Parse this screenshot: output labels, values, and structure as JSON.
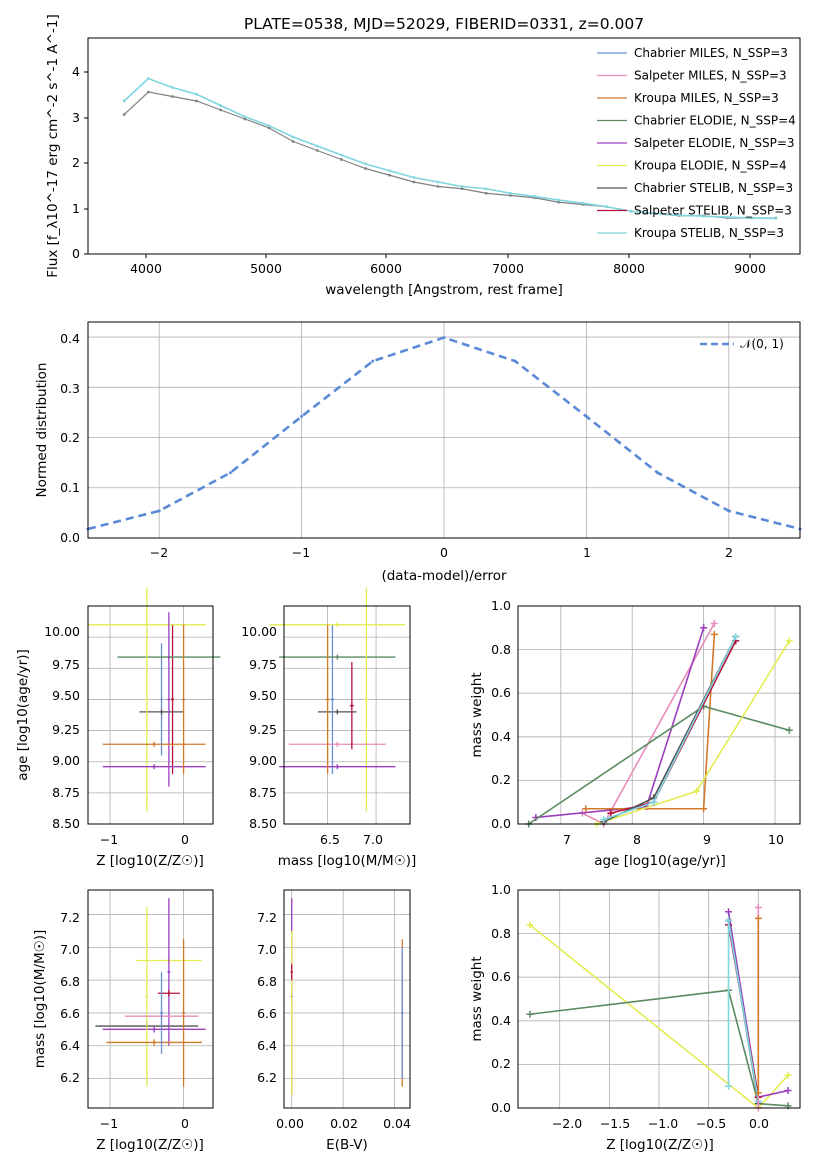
{
  "charts": {
    "spectrum": {
      "title": "PLATE=0538, MJD=52029, FIBERID=0331, z=0.007",
      "xlabel": "wavelength [Angstrom, rest frame]",
      "ylabel": "Flux [f_λ10^-17 erg cm^-2 s^-1 A^-1]",
      "xticks": [
        "4000",
        "5000",
        "6000",
        "7000",
        "8000",
        "9000"
      ],
      "yticks": [
        "0",
        "1",
        "2",
        "3",
        "4"
      ]
    },
    "hist": {
      "xlabel": "(data-model)/error",
      "ylabel": "Normed distribution",
      "xticks": [
        "−2",
        "−1",
        "0",
        "1",
        "2"
      ],
      "yticks": [
        "0.0",
        "0.1",
        "0.2",
        "0.3",
        "0.4"
      ],
      "legend": "𝒩(0, 1)"
    },
    "age_z": {
      "xlabel": "Z [log10(Z/Z☉)]",
      "ylabel": "age  [log10(age/yr)]",
      "xticks": [
        "−1",
        "0"
      ],
      "yticks": [
        "8.50",
        "8.75",
        "9.00",
        "9.25",
        "9.50",
        "9.75",
        "10.00"
      ]
    },
    "age_mass": {
      "xlabel": "mass [log10(M/M☉)]",
      "xticks": [
        "6.5",
        "7.0"
      ],
      "yticks": [
        "8.50",
        "8.75",
        "9.00",
        "9.25",
        "9.50",
        "9.75",
        "10.00"
      ]
    },
    "mw_age": {
      "xlabel": "age  [log10(age/yr)]",
      "ylabel": "mass weight",
      "xticks": [
        "7",
        "8",
        "9",
        "10"
      ],
      "yticks": [
        "0.0",
        "0.2",
        "0.4",
        "0.6",
        "0.8",
        "1.0"
      ]
    },
    "mass_z": {
      "xlabel": "Z [log10(Z/Z☉)]",
      "ylabel": "mass [log10(M/M☉)]",
      "xticks": [
        "−1",
        "0"
      ],
      "yticks": [
        "6.2",
        "6.4",
        "6.6",
        "6.8",
        "7.0",
        "7.2"
      ]
    },
    "mass_ebv": {
      "xlabel": "E(B-V)",
      "xticks": [
        "0.00",
        "0.02",
        "0.04"
      ],
      "yticks": [
        "6.2",
        "6.4",
        "6.6",
        "6.8",
        "7.0",
        "7.2"
      ]
    },
    "mw_z": {
      "xlabel": "Z [log10(Z/Z☉)]",
      "ylabel": "mass weight",
      "xticks": [
        "−2.0",
        "−1.5",
        "−1.0",
        "−0.5",
        "0.0"
      ],
      "yticks": [
        "0.0",
        "0.2",
        "0.4",
        "0.6",
        "0.8",
        "1.0"
      ]
    }
  },
  "chart_data": [
    {
      "type": "line",
      "title": "PLATE=0538, MJD=52029, FIBERID=0331, z=0.007",
      "xlabel": "wavelength [Angstrom, rest frame]",
      "ylabel": "Flux [f_λ10^-17 erg cm^-2 s^-1 A^-1]",
      "xlim": [
        3500,
        9400
      ],
      "ylim": [
        0,
        4.8
      ],
      "grid": false,
      "legend_position": "top-right",
      "legend": [
        {
          "label": "Chabrier MILES, N_SSP=3",
          "color": "#6b8fd6"
        },
        {
          "label": "Salpeter MILES, N_SSP=3",
          "color": "#e88cbb"
        },
        {
          "label": "Kroupa MILES, N_SSP=3",
          "color": "#d07a2a"
        },
        {
          "label": "Chabrier ELODIE, N_SSP=4",
          "color": "#5b8a63"
        },
        {
          "label": "Salpeter ELODIE, N_SSP=3",
          "color": "#9b3fbf"
        },
        {
          "label": "Kroupa ELODIE, N_SSP=4",
          "color": "#e4ec53"
        },
        {
          "label": "Chabrier STELIB, N_SSP=3",
          "color": "#555555"
        },
        {
          "label": "Salpeter STELIB, N_SSP=3",
          "color": "#b3123b"
        },
        {
          "label": "Kroupa STELIB, N_SSP=3",
          "color": "#7fd6de"
        }
      ],
      "series": [
        {
          "name": "data",
          "color": "#808080",
          "x": [
            3800,
            4000,
            4200,
            4400,
            4600,
            4800,
            5000,
            5200,
            5400,
            5600,
            5800,
            6000,
            6200,
            6400,
            6600,
            6800,
            7000,
            7200,
            7400,
            7600,
            7800,
            8000,
            8200,
            8400,
            8600,
            8800,
            9000,
            9200
          ],
          "y": [
            3.1,
            3.6,
            3.5,
            3.4,
            3.2,
            3.0,
            2.8,
            2.5,
            2.3,
            2.1,
            1.9,
            1.75,
            1.6,
            1.5,
            1.45,
            1.35,
            1.3,
            1.25,
            1.15,
            1.1,
            1.05,
            0.95,
            0.9,
            0.85,
            0.85,
            0.8,
            0.8,
            0.8
          ]
        },
        {
          "name": "model",
          "color": "#7fd6de",
          "x": [
            3800,
            4000,
            4200,
            4400,
            4600,
            4800,
            5000,
            5200,
            5400,
            5600,
            5800,
            6000,
            6200,
            6400,
            6600,
            6800,
            7000,
            7200,
            7400,
            7600,
            7800,
            8000,
            8200,
            8400,
            8600,
            8800,
            9000,
            9200
          ],
          "y": [
            3.4,
            3.9,
            3.7,
            3.55,
            3.3,
            3.05,
            2.85,
            2.6,
            2.4,
            2.2,
            2.0,
            1.85,
            1.7,
            1.6,
            1.5,
            1.45,
            1.35,
            1.28,
            1.2,
            1.13,
            1.05,
            0.95,
            0.9,
            0.86,
            0.84,
            0.82,
            0.8,
            0.79
          ]
        }
      ]
    },
    {
      "type": "line",
      "xlabel": "(data-model)/error",
      "ylabel": "Normed distribution",
      "xlim": [
        -2.5,
        2.5
      ],
      "ylim": [
        0,
        0.43
      ],
      "grid": true,
      "legend_position": "top-right",
      "legend": [
        {
          "label": "𝒩(0, 1)",
          "color": "#5a8ad6"
        }
      ],
      "series": [
        {
          "name": "𝒩(0, 1)",
          "x": [
            -2.5,
            -2.0,
            -1.5,
            -1.0,
            -0.5,
            0.0,
            0.5,
            1.0,
            1.5,
            2.0,
            2.5
          ],
          "y": [
            0.018,
            0.054,
            0.13,
            0.242,
            0.352,
            0.399,
            0.352,
            0.242,
            0.13,
            0.054,
            0.018
          ]
        }
      ]
    },
    {
      "type": "scatter",
      "xlabel": "Z [log10(Z/Z☉)]",
      "ylabel": "age  [log10(age/yr)]",
      "xlim": [
        -1.3,
        0.4
      ],
      "ylim": [
        8.5,
        10.25
      ],
      "points": [
        {
          "x": -0.3,
          "y": 9.5,
          "xerr": 0.0,
          "yerr": 0.45,
          "color": "#6b8fd6"
        },
        {
          "x": -0.3,
          "y": 9.4,
          "xerr": 0.3,
          "yerr": 0.02,
          "color": "#555555"
        },
        {
          "x": -0.15,
          "y": 9.5,
          "xerr": 0.02,
          "yerr": 0.6,
          "color": "#b3123b"
        },
        {
          "x": -0.2,
          "y": 9.84,
          "xerr": 0.7,
          "yerr": 0.02,
          "color": "#5b8a63"
        },
        {
          "x": -0.5,
          "y": 10.1,
          "xerr": 0.8,
          "yerr": 0.02,
          "color": "#e4ec53"
        },
        {
          "x": -0.5,
          "y": 9.5,
          "xerr": 0.02,
          "yerr": 0.9,
          "color": "#e4ec53"
        },
        {
          "x": -0.2,
          "y": 9.5,
          "xerr": 0.02,
          "yerr": 0.7,
          "color": "#9b3fbf"
        },
        {
          "x": -0.4,
          "y": 8.96,
          "xerr": 0.7,
          "yerr": 0.02,
          "color": "#9b3fbf"
        },
        {
          "x": -0.4,
          "y": 9.14,
          "xerr": 0.7,
          "yerr": 0.02,
          "color": "#d07a2a"
        },
        {
          "x": 0.0,
          "y": 9.5,
          "xerr": 0.02,
          "yerr": 0.6,
          "color": "#d07a2a"
        }
      ]
    },
    {
      "type": "scatter",
      "xlabel": "mass [log10(M/M☉)]",
      "xlim": [
        6.05,
        7.35
      ],
      "ylim": [
        8.5,
        10.25
      ],
      "points": [
        {
          "x": 6.6,
          "y": 9.4,
          "xerr": 0.2,
          "yerr": 0.02,
          "color": "#555555"
        },
        {
          "x": 6.55,
          "y": 9.5,
          "xerr": 0.02,
          "yerr": 0.6,
          "color": "#6b8fd6"
        },
        {
          "x": 6.6,
          "y": 9.84,
          "xerr": 0.6,
          "yerr": 0.02,
          "color": "#5b8a63"
        },
        {
          "x": 6.6,
          "y": 10.1,
          "xerr": 0.7,
          "yerr": 0.02,
          "color": "#e4ec53"
        },
        {
          "x": 6.9,
          "y": 9.5,
          "xerr": 0.02,
          "yerr": 0.9,
          "color": "#e4ec53"
        },
        {
          "x": 6.6,
          "y": 8.96,
          "xerr": 0.6,
          "yerr": 0.02,
          "color": "#9b3fbf"
        },
        {
          "x": 6.6,
          "y": 9.14,
          "xerr": 0.5,
          "yerr": 0.02,
          "color": "#e88cbb"
        },
        {
          "x": 6.75,
          "y": 9.45,
          "xerr": 0.02,
          "yerr": 0.35,
          "color": "#b3123b"
        },
        {
          "x": 6.5,
          "y": 9.5,
          "xerr": 0.02,
          "yerr": 0.6,
          "color": "#d07a2a"
        }
      ]
    },
    {
      "type": "line",
      "xlabel": "age  [log10(age/yr)]",
      "ylabel": "mass weight",
      "xlim": [
        6.4,
        10.35
      ],
      "ylim": [
        0,
        1.0
      ],
      "grid": true,
      "series": [
        {
          "color": "#e88cbb",
          "x": [
            7.3,
            7.6,
            9.15
          ],
          "y": [
            0.05,
            0.0,
            0.92
          ]
        },
        {
          "color": "#9b3fbf",
          "x": [
            6.65,
            8.2,
            9.0
          ],
          "y": [
            0.03,
            0.08,
            0.9
          ]
        },
        {
          "color": "#d07a2a",
          "x": [
            7.35,
            9.0,
            9.15
          ],
          "y": [
            0.07,
            0.07,
            0.87
          ]
        },
        {
          "color": "#5b8a63",
          "x": [
            6.55,
            9.0,
            10.2
          ],
          "y": [
            0.0,
            0.54,
            0.43
          ]
        },
        {
          "color": "#e4ec53",
          "x": [
            7.5,
            8.9,
            10.2
          ],
          "y": [
            0.0,
            0.15,
            0.84
          ]
        },
        {
          "color": "#b3123b",
          "x": [
            7.7,
            8.3,
            9.45
          ],
          "y": [
            0.05,
            0.1,
            0.84
          ]
        },
        {
          "color": "#555555",
          "x": [
            7.6,
            8.3,
            9.45
          ],
          "y": [
            0.01,
            0.12,
            0.86
          ]
        },
        {
          "color": "#7fd6de",
          "x": [
            7.6,
            8.3,
            9.45
          ],
          "y": [
            0.02,
            0.1,
            0.86
          ]
        }
      ]
    },
    {
      "type": "scatter",
      "xlabel": "Z [log10(Z/Z☉)]",
      "ylabel": "mass [log10(M/M☉)]",
      "xlim": [
        -1.3,
        0.4
      ],
      "ylim": [
        6.02,
        7.35
      ],
      "points": [
        {
          "x": -0.5,
          "y": 6.52,
          "xerr": 0.7,
          "yerr": 0.02,
          "color": "#555555"
        },
        {
          "x": -0.4,
          "y": 6.5,
          "xerr": 0.7,
          "yerr": 0.02,
          "color": "#9b3fbf"
        },
        {
          "x": -0.5,
          "y": 6.7,
          "xerr": 0.02,
          "yerr": 0.55,
          "color": "#e4ec53"
        },
        {
          "x": -0.2,
          "y": 6.92,
          "xerr": 0.45,
          "yerr": 0.02,
          "color": "#e4ec53"
        },
        {
          "x": -0.2,
          "y": 6.85,
          "xerr": 0.02,
          "yerr": 0.45,
          "color": "#9b3fbf"
        },
        {
          "x": -0.2,
          "y": 6.72,
          "xerr": 0.15,
          "yerr": 0.02,
          "color": "#b3123b"
        },
        {
          "x": -0.3,
          "y": 6.58,
          "xerr": 0.5,
          "yerr": 0.02,
          "color": "#e88cbb"
        },
        {
          "x": -0.4,
          "y": 6.42,
          "xerr": 0.65,
          "yerr": 0.02,
          "color": "#d07a2a"
        },
        {
          "x": 0.0,
          "y": 6.6,
          "xerr": 0.02,
          "yerr": 0.45,
          "color": "#d07a2a"
        },
        {
          "x": -0.3,
          "y": 6.6,
          "xerr": 0.02,
          "yerr": 0.25,
          "color": "#6b8fd6"
        }
      ]
    },
    {
      "type": "scatter",
      "xlabel": "E(B-V)",
      "xlim": [
        -0.003,
        0.046
      ],
      "ylim": [
        6.02,
        7.35
      ],
      "points": [
        {
          "x": 0.0,
          "y": 6.7,
          "xerr": 0.0,
          "yerr": 0.6,
          "color": "#9b3fbf"
        },
        {
          "x": 0.0,
          "y": 6.6,
          "xerr": 0.0,
          "yerr": 0.5,
          "color": "#e4ec53"
        },
        {
          "x": 0.0,
          "y": 6.85,
          "xerr": 0.0,
          "yerr": 0.05,
          "color": "#b3123b"
        },
        {
          "x": 0.043,
          "y": 6.6,
          "xerr": 0.0,
          "yerr": 0.45,
          "color": "#d07a2a"
        },
        {
          "x": 0.043,
          "y": 6.6,
          "xerr": 0.0,
          "yerr": 0.4,
          "color": "#6b8fd6"
        }
      ]
    },
    {
      "type": "line",
      "xlabel": "Z [log10(Z/Z☉)]",
      "ylabel": "mass weight",
      "xlim": [
        -2.42,
        0.42
      ],
      "ylim": [
        0,
        1.0
      ],
      "grid": true,
      "series": [
        {
          "color": "#e4ec53",
          "x": [
            -2.3,
            0.0,
            0.3
          ],
          "y": [
            0.84,
            0.0,
            0.15
          ]
        },
        {
          "color": "#5b8a63",
          "x": [
            -2.3,
            -0.3,
            0.0,
            0.3
          ],
          "y": [
            0.43,
            0.54,
            0.02,
            0.01
          ]
        },
        {
          "color": "#9b3fbf",
          "x": [
            -0.3,
            0.0,
            0.3
          ],
          "y": [
            0.9,
            0.05,
            0.08
          ]
        },
        {
          "color": "#b3123b",
          "x": [
            -0.3,
            0.0
          ],
          "y": [
            0.84,
            0.05
          ]
        },
        {
          "color": "#555555",
          "x": [
            -0.3,
            0.0
          ],
          "y": [
            0.86,
            0.02
          ]
        },
        {
          "color": "#7fd6de",
          "x": [
            -0.3,
            -0.3,
            0.0
          ],
          "y": [
            0.1,
            0.86,
            0.03
          ]
        },
        {
          "color": "#e88cbb",
          "x": [
            0.0,
            0.0
          ],
          "y": [
            0.92,
            0.0
          ]
        },
        {
          "color": "#d07a2a",
          "x": [
            0.0,
            0.0
          ],
          "y": [
            0.87,
            0.07
          ]
        }
      ]
    }
  ]
}
